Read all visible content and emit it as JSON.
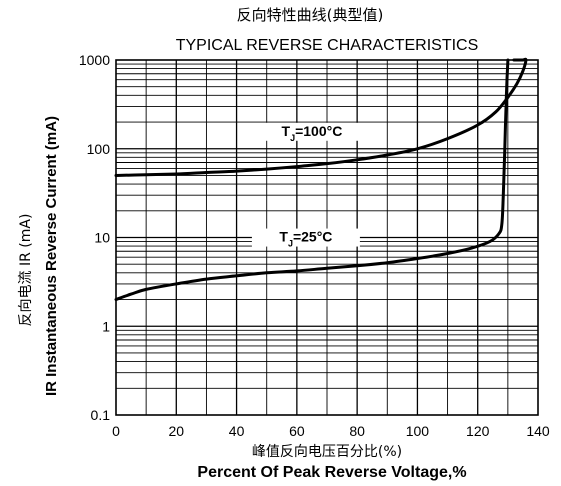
{
  "chart_data": {
    "type": "line",
    "title_zh": "反向特性曲线(典型值)",
    "title": "TYPICAL REVERSE CHARACTERISTICS",
    "xlabel_zh": "峰值反向电压百分比(%)",
    "xlabel": "Percent  Of Peak Reverse Voltage,%",
    "ylabel_zh": "反向电流  IR (mA)",
    "ylabel": "IR Instantaneous Reverse Current (mA)",
    "xlim": [
      0,
      140
    ],
    "ylim": [
      0.1,
      1000
    ],
    "yscale": "log",
    "grid": true,
    "x_ticks": [
      "0",
      "20",
      "40",
      "60",
      "80",
      "100",
      "120",
      "140"
    ],
    "y_ticks": [
      "0.1",
      "1",
      "10",
      "100",
      "1000"
    ],
    "series": [
      {
        "name": "TJ=100°C",
        "x": [
          0,
          10,
          20,
          30,
          40,
          50,
          60,
          70,
          80,
          90,
          100,
          110,
          120,
          126,
          130,
          133,
          135,
          136,
          135,
          133,
          132
        ],
        "y": [
          50,
          51,
          52,
          54,
          56,
          59,
          63,
          68,
          75,
          85,
          100,
          130,
          185,
          260,
          380,
          540,
          750,
          1000,
          1000,
          1000,
          1000
        ]
      },
      {
        "name": "TJ=25°C",
        "x": [
          0,
          5,
          10,
          20,
          30,
          40,
          50,
          60,
          70,
          80,
          90,
          100,
          110,
          118,
          124,
          127,
          128,
          128.5,
          129,
          129.5,
          130
        ],
        "y": [
          2,
          2.3,
          2.6,
          3.0,
          3.4,
          3.7,
          4.0,
          4.2,
          4.5,
          4.8,
          5.2,
          5.8,
          6.6,
          7.6,
          9.0,
          11,
          14,
          30,
          100,
          400,
          1000
        ]
      }
    ],
    "annotations": [
      {
        "text": "TJ=100°C",
        "x": 65,
        "y": 140
      },
      {
        "text": "TJ=25°C",
        "x": 63,
        "y": 9
      }
    ]
  }
}
